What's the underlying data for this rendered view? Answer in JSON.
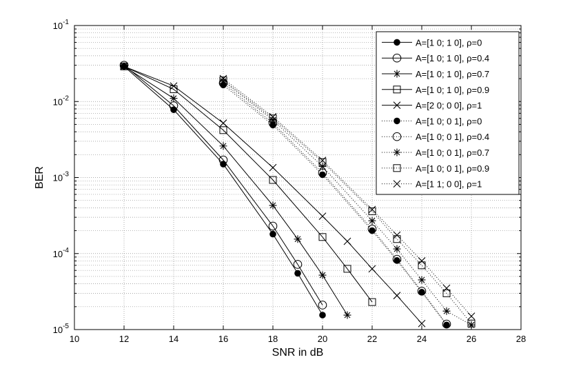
{
  "chart_data": {
    "type": "line",
    "xlabel": "SNR in dB",
    "ylabel": "BER",
    "xlim": [
      10,
      28
    ],
    "ylim": [
      1e-05,
      0.1
    ],
    "yscale": "log",
    "grid": true,
    "legend_position": "top-right",
    "x_ticks": [
      "10",
      "12",
      "14",
      "16",
      "18",
      "20",
      "22",
      "24",
      "26",
      "28"
    ],
    "y_ticks": [
      {
        "base": "10",
        "exp": "-5"
      },
      {
        "base": "10",
        "exp": "-4"
      },
      {
        "base": "10",
        "exp": "-3"
      },
      {
        "base": "10",
        "exp": "-2"
      },
      {
        "base": "10",
        "exp": "-1"
      }
    ],
    "series": [
      {
        "name": "A=[1 0; 1 0], ρ=0",
        "marker": "dot",
        "line": "solid",
        "x": [
          12,
          14,
          16,
          18,
          19,
          20
        ],
        "y": [
          0.029,
          0.0078,
          0.0015,
          0.00018,
          5.5e-05,
          1.55e-05
        ]
      },
      {
        "name": "A=[1 0; 1 0], ρ=0.4",
        "marker": "circle",
        "line": "solid",
        "x": [
          12,
          14,
          16,
          18,
          19,
          20
        ],
        "y": [
          0.03,
          0.0088,
          0.0017,
          0.00023,
          7.2e-05,
          2.1e-05
        ]
      },
      {
        "name": "A=[1 0; 1 0], ρ=0.7",
        "marker": "star",
        "line": "solid",
        "x": [
          12,
          14,
          16,
          18,
          19,
          20,
          21
        ],
        "y": [
          0.029,
          0.011,
          0.0026,
          0.00043,
          0.000155,
          5.2e-05,
          1.55e-05
        ]
      },
      {
        "name": "A=[1 0; 1 0], ρ=0.9",
        "marker": "square",
        "line": "solid",
        "x": [
          12,
          14,
          16,
          18,
          20,
          21,
          22
        ],
        "y": [
          0.029,
          0.0145,
          0.0042,
          0.00093,
          0.000165,
          6.3e-05,
          2.3e-05
        ]
      },
      {
        "name": "A=[2 0; 0 0], ρ=1",
        "marker": "x",
        "line": "solid",
        "x": [
          12,
          14,
          16,
          18,
          20,
          21,
          22,
          23,
          24
        ],
        "y": [
          0.029,
          0.016,
          0.0052,
          0.00135,
          0.00031,
          0.000145,
          6.3e-05,
          2.8e-05,
          1.2e-05
        ]
      },
      {
        "name": "A=[1 0; 0 1], ρ=0",
        "marker": "dot",
        "line": "dotted",
        "x": [
          16,
          18,
          20,
          22,
          23,
          24,
          25
        ],
        "y": [
          0.0165,
          0.0049,
          0.00109,
          0.0002,
          8.1e-05,
          3.1e-05,
          1.15e-05
        ]
      },
      {
        "name": "A=[1 0; 0 1], ρ=0.4",
        "marker": "circle",
        "line": "dotted",
        "x": [
          16,
          18,
          20,
          22,
          23,
          24,
          25
        ],
        "y": [
          0.0175,
          0.0052,
          0.00115,
          0.00021,
          8.4e-05,
          3.2e-05,
          1.18e-05
        ]
      },
      {
        "name": "A=[1 0; 0 1], ρ=0.7",
        "marker": "star",
        "line": "dotted",
        "x": [
          16,
          18,
          20,
          22,
          23,
          24,
          25,
          26
        ],
        "y": [
          0.0185,
          0.0057,
          0.0014,
          0.00027,
          0.000115,
          4.5e-05,
          1.75e-05,
          1.15e-05
        ]
      },
      {
        "name": "A=[1 0; 0 1], ρ=0.9",
        "marker": "square",
        "line": "dotted",
        "x": [
          16,
          18,
          20,
          22,
          23,
          24,
          25,
          26
        ],
        "y": [
          0.019,
          0.006,
          0.0016,
          0.00036,
          0.000155,
          7e-05,
          3e-05,
          1.2e-05
        ]
      },
      {
        "name": "A=[1 1; 0 0], ρ=1",
        "marker": "x",
        "line": "dotted",
        "x": [
          16,
          18,
          20,
          22,
          23,
          24,
          25,
          26
        ],
        "y": [
          0.02,
          0.0063,
          0.00168,
          0.00038,
          0.000175,
          8e-05,
          3.5e-05,
          1.5e-05
        ]
      }
    ]
  }
}
